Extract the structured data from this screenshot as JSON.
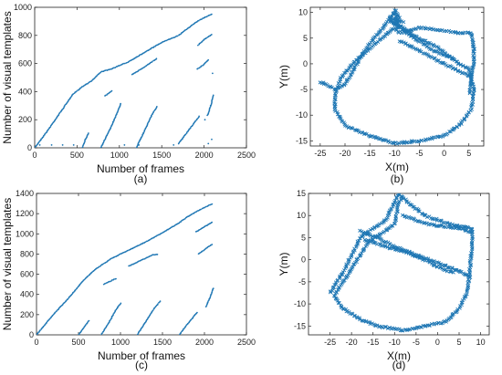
{
  "chart_data": [
    {
      "panel": "a",
      "type": "scatter",
      "caption": "(a)",
      "xlabel": "Number of frames",
      "ylabel": "Number of visual templates",
      "xlim": [
        0,
        2500
      ],
      "ylim": [
        0,
        1000
      ],
      "xticks": [
        0,
        500,
        1000,
        1500,
        2000,
        2500
      ],
      "yticks": [
        0,
        200,
        400,
        600,
        800,
        1000
      ],
      "marker": "dot",
      "color": "#1f77b4",
      "segments": [
        {
          "kind": "line",
          "points": [
            [
              0,
              0
            ],
            [
              150,
              120
            ],
            [
              300,
              250
            ],
            [
              450,
              380
            ],
            [
              550,
              430
            ],
            [
              680,
              480
            ],
            [
              780,
              540
            ],
            [
              900,
              560
            ],
            [
              1100,
              610
            ],
            [
              1300,
              680
            ],
            [
              1500,
              750
            ],
            [
              1700,
              800
            ],
            [
              1850,
              870
            ],
            [
              1950,
              910
            ],
            [
              2100,
              955
            ]
          ]
        },
        {
          "kind": "line",
          "points": [
            [
              560,
              0
            ],
            [
              600,
              60
            ],
            [
              640,
              110
            ]
          ]
        },
        {
          "kind": "line",
          "points": [
            [
              780,
              0
            ],
            [
              880,
              120
            ],
            [
              960,
              230
            ],
            [
              1020,
              320
            ]
          ]
        },
        {
          "kind": "line",
          "points": [
            [
              830,
              370
            ],
            [
              880,
              390
            ],
            [
              920,
              410
            ]
          ]
        },
        {
          "kind": "line",
          "points": [
            [
              1200,
              0
            ],
            [
              1280,
              100
            ],
            [
              1380,
              230
            ],
            [
              1450,
              300
            ]
          ]
        },
        {
          "kind": "line",
          "points": [
            [
              1150,
              520
            ],
            [
              1280,
              570
            ],
            [
              1380,
              610
            ],
            [
              1450,
              640
            ]
          ]
        },
        {
          "kind": "line",
          "points": [
            [
              1700,
              30
            ],
            [
              1850,
              150
            ],
            [
              1950,
              230
            ]
          ]
        },
        {
          "kind": "line",
          "points": [
            [
              1920,
              560
            ],
            [
              1990,
              590
            ],
            [
              2060,
              630
            ]
          ]
        },
        {
          "kind": "line",
          "points": [
            [
              2040,
              230
            ],
            [
              2080,
              300
            ],
            [
              2110,
              380
            ]
          ]
        },
        {
          "kind": "line",
          "points": [
            [
              1930,
              730
            ],
            [
              2000,
              770
            ],
            [
              2100,
              810
            ]
          ]
        },
        {
          "kind": "sparse",
          "points": [
            [
              60,
              20
            ],
            [
              200,
              20
            ],
            [
              330,
              20
            ],
            [
              460,
              20
            ],
            [
              1060,
              20
            ],
            [
              1230,
              20
            ],
            [
              1640,
              20
            ],
            [
              2050,
              30
            ],
            [
              2090,
              60
            ],
            [
              2100,
              530
            ],
            [
              2010,
              200
            ]
          ]
        }
      ]
    },
    {
      "panel": "b",
      "type": "scatter",
      "caption": "(b)",
      "xlabel": "X(m)",
      "ylabel": "Y(m)",
      "xlim": [
        -27,
        8
      ],
      "ylim": [
        -16,
        11
      ],
      "xticks": [
        -25,
        -20,
        -15,
        -10,
        -5,
        0,
        5
      ],
      "yticks": [
        -15,
        -10,
        -5,
        0,
        5,
        10
      ],
      "marker": "x",
      "color": "#1f77b4",
      "segments": [
        {
          "kind": "path",
          "points": [
            [
              -25,
              -3.5
            ],
            [
              -22,
              -5
            ],
            [
              -20,
              -4
            ],
            [
              -17,
              1
            ],
            [
              -15,
              4
            ],
            [
              -12,
              7.5
            ],
            [
              -10,
              10
            ],
            [
              -9.5,
              8
            ],
            [
              -7,
              6
            ],
            [
              -4,
              4.5
            ],
            [
              -1,
              3
            ],
            [
              1,
              1.5
            ],
            [
              3,
              0
            ],
            [
              5,
              -1
            ],
            [
              6,
              -5
            ],
            [
              5.5,
              -9
            ],
            [
              3,
              -12
            ],
            [
              0,
              -14
            ],
            [
              -5,
              -15
            ],
            [
              -10,
              -15.5
            ],
            [
              -15,
              -14
            ],
            [
              -20,
              -12
            ],
            [
              -22,
              -9
            ],
            [
              -22,
              -6
            ],
            [
              -21,
              -3
            ],
            [
              -18,
              0.5
            ],
            [
              -15,
              3
            ],
            [
              -12,
              5.5
            ],
            [
              -10,
              7
            ],
            [
              -9,
              6
            ],
            [
              -5,
              7
            ],
            [
              0,
              6.5
            ],
            [
              3,
              6
            ],
            [
              5.5,
              6
            ],
            [
              6,
              3
            ],
            [
              6,
              0
            ],
            [
              5.5,
              -3
            ],
            [
              5,
              -6
            ]
          ]
        },
        {
          "kind": "path",
          "points": [
            [
              -11,
              8.5
            ],
            [
              -6,
              5
            ],
            [
              -2,
              2.5
            ],
            [
              2,
              1
            ]
          ]
        },
        {
          "kind": "path",
          "points": [
            [
              -9,
              4.5
            ],
            [
              -4,
              2
            ],
            [
              0,
              0
            ],
            [
              3,
              -1.5
            ],
            [
              5.5,
              -2.5
            ]
          ]
        },
        {
          "kind": "path",
          "points": [
            [
              -10,
              10.5
            ],
            [
              -9,
              9
            ],
            [
              -10,
              8
            ],
            [
              -9,
              7
            ],
            [
              -11,
              9
            ],
            [
              -8,
              8
            ]
          ]
        }
      ]
    },
    {
      "panel": "c",
      "type": "scatter",
      "caption": "(c)",
      "xlabel": "Number of frames",
      "ylabel": "Number of visual templates",
      "xlim": [
        0,
        2500
      ],
      "ylim": [
        0,
        1400
      ],
      "xticks": [
        0,
        500,
        1000,
        1500,
        2000,
        2500
      ],
      "yticks": [
        0,
        200,
        400,
        600,
        800,
        1000,
        1200,
        1400
      ],
      "marker": "dot",
      "color": "#1f77b4",
      "segments": [
        {
          "kind": "line",
          "points": [
            [
              0,
              0
            ],
            [
              200,
              200
            ],
            [
              400,
              380
            ],
            [
              560,
              540
            ],
            [
              700,
              650
            ],
            [
              900,
              760
            ],
            [
              1100,
              840
            ],
            [
              1300,
              920
            ],
            [
              1500,
              1010
            ],
            [
              1700,
              1110
            ],
            [
              1800,
              1170
            ],
            [
              1950,
              1240
            ],
            [
              2100,
              1300
            ]
          ]
        },
        {
          "kind": "line",
          "points": [
            [
              500,
              0
            ],
            [
              580,
              90
            ],
            [
              630,
              150
            ]
          ]
        },
        {
          "kind": "line",
          "points": [
            [
              770,
              0
            ],
            [
              860,
              120
            ],
            [
              940,
              240
            ],
            [
              1010,
              320
            ]
          ]
        },
        {
          "kind": "line",
          "points": [
            [
              800,
              500
            ],
            [
              900,
              540
            ],
            [
              960,
              560
            ]
          ]
        },
        {
          "kind": "line",
          "points": [
            [
              1200,
              0
            ],
            [
              1300,
              130
            ],
            [
              1400,
              260
            ],
            [
              1480,
              340
            ]
          ]
        },
        {
          "kind": "line",
          "points": [
            [
              1100,
              680
            ],
            [
              1250,
              740
            ],
            [
              1380,
              790
            ],
            [
              1450,
              800
            ]
          ]
        },
        {
          "kind": "line",
          "points": [
            [
              1700,
              0
            ],
            [
              1820,
              130
            ],
            [
              1920,
              230
            ]
          ]
        },
        {
          "kind": "line",
          "points": [
            [
              1930,
              800
            ],
            [
              2010,
              850
            ],
            [
              2100,
              900
            ]
          ]
        },
        {
          "kind": "line",
          "points": [
            [
              2020,
              280
            ],
            [
              2070,
              380
            ],
            [
              2110,
              470
            ]
          ]
        },
        {
          "kind": "line",
          "points": [
            [
              1900,
              1020
            ],
            [
              2000,
              1070
            ],
            [
              2100,
              1120
            ]
          ]
        }
      ]
    },
    {
      "panel": "d",
      "type": "scatter",
      "caption": "(d)",
      "xlabel": "X(m)",
      "ylabel": "Y(m)",
      "xlim": [
        -30,
        12
      ],
      "ylim": [
        -17,
        15
      ],
      "xticks": [
        -25,
        -20,
        -15,
        -10,
        -5,
        0,
        5,
        10
      ],
      "yticks": [
        -15,
        -10,
        -5,
        0,
        5,
        10,
        15
      ],
      "marker": "x",
      "color": "#1f77b4",
      "segments": [
        {
          "kind": "path",
          "points": [
            [
              -25,
              -7.5
            ],
            [
              -22,
              -3
            ],
            [
              -20,
              1
            ],
            [
              -18,
              5
            ],
            [
              -15,
              7
            ],
            [
              -12,
              9
            ],
            [
              -9,
              15
            ],
            [
              -7,
              13
            ],
            [
              -3,
              10
            ],
            [
              0,
              9
            ],
            [
              3,
              8
            ],
            [
              6,
              7.5
            ],
            [
              8,
              7
            ],
            [
              8,
              3
            ],
            [
              7.5,
              -2
            ],
            [
              7,
              -7
            ],
            [
              5,
              -11
            ],
            [
              2,
              -14
            ],
            [
              -3,
              -15
            ],
            [
              -8,
              -16
            ],
            [
              -14,
              -15
            ],
            [
              -18,
              -13.5
            ],
            [
              -22,
              -11
            ],
            [
              -24,
              -8
            ]
          ]
        },
        {
          "kind": "path",
          "points": [
            [
              -18,
              6.5
            ],
            [
              -14,
              5
            ],
            [
              -10,
              3
            ],
            [
              -6,
              1.5
            ],
            [
              -2,
              0
            ],
            [
              2,
              -1.5
            ],
            [
              6,
              -3
            ],
            [
              8,
              -4
            ]
          ]
        },
        {
          "kind": "path",
          "points": [
            [
              -17,
              4.5
            ],
            [
              -12,
              3
            ],
            [
              -7,
              1.5
            ],
            [
              -3,
              0
            ],
            [
              1,
              -2
            ],
            [
              4,
              -3
            ]
          ]
        },
        {
          "kind": "path",
          "points": [
            [
              -24,
              -8
            ],
            [
              -22,
              -5
            ],
            [
              -20,
              -2
            ],
            [
              -18,
              1
            ],
            [
              -16,
              4
            ],
            [
              -13,
              6
            ],
            [
              -10,
              8
            ],
            [
              -9,
              13
            ],
            [
              -8,
              14
            ]
          ]
        },
        {
          "kind": "path",
          "points": [
            [
              -8,
              10
            ],
            [
              -5,
              9
            ],
            [
              -2,
              8
            ],
            [
              2,
              7.5
            ],
            [
              6,
              7
            ],
            [
              8,
              6
            ]
          ]
        }
      ]
    }
  ]
}
